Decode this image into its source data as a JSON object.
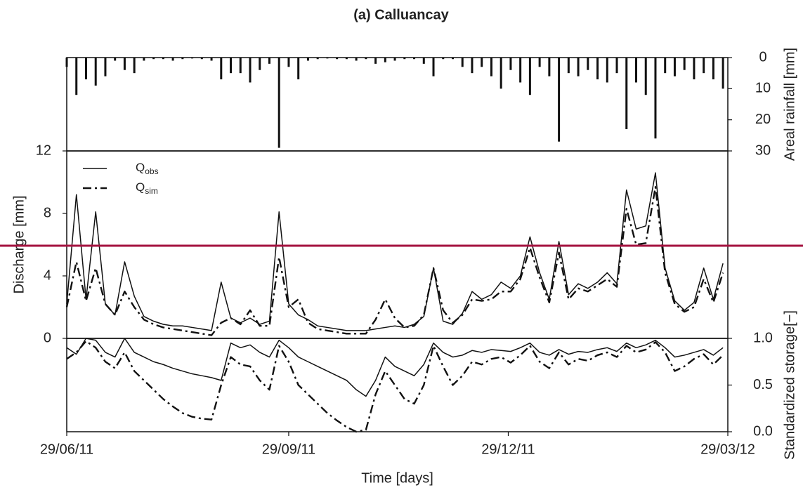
{
  "title": "(a) Calluancay",
  "chart_data": [
    {
      "type": "bar",
      "ylabel": "Areal rainfall [mm]",
      "yaxis_side": "right",
      "inverted": true,
      "color": "#111111",
      "xlim": [
        0,
        274
      ],
      "ylim": [
        0,
        30
      ],
      "yticks": [
        0,
        10,
        20,
        30
      ],
      "x": [
        0,
        4,
        8,
        12,
        16,
        20,
        24,
        28,
        32,
        36,
        40,
        44,
        48,
        52,
        56,
        60,
        64,
        68,
        72,
        76,
        80,
        84,
        88,
        92,
        96,
        100,
        104,
        108,
        112,
        116,
        120,
        124,
        128,
        132,
        136,
        140,
        144,
        148,
        152,
        156,
        160,
        164,
        168,
        172,
        176,
        180,
        184,
        188,
        192,
        196,
        200,
        204,
        208,
        212,
        216,
        220,
        224,
        228,
        232,
        236,
        240,
        244,
        248,
        252,
        256,
        260,
        264,
        268,
        272
      ],
      "values": [
        3,
        12,
        7,
        9,
        6,
        1,
        4,
        5,
        1,
        0.5,
        0.5,
        1,
        0.5,
        0.3,
        0.5,
        1,
        7,
        5,
        5,
        8,
        4,
        2,
        29,
        3,
        7,
        1,
        0.5,
        0.3,
        0.5,
        0.5,
        1,
        0.5,
        2,
        1.5,
        1,
        0.5,
        0.5,
        2,
        6,
        0.5,
        0.5,
        3,
        5,
        3,
        6,
        10,
        4,
        8,
        12,
        3,
        6,
        27,
        5,
        6,
        4,
        7,
        8,
        5,
        23,
        8,
        12,
        26,
        5,
        6,
        4,
        7,
        5,
        7,
        10
      ]
    },
    {
      "type": "line",
      "ylabel": "Discharge [mm]",
      "yaxis_side": "left",
      "legend": "upper left",
      "xlim": [
        0,
        274
      ],
      "ylim": [
        0,
        12
      ],
      "yticks": [
        0,
        4,
        8,
        12
      ],
      "x": [
        0,
        4,
        8,
        12,
        16,
        20,
        24,
        28,
        32,
        36,
        40,
        44,
        48,
        52,
        56,
        60,
        64,
        68,
        72,
        76,
        80,
        84,
        88,
        92,
        96,
        100,
        104,
        108,
        112,
        116,
        120,
        124,
        128,
        132,
        136,
        140,
        144,
        148,
        152,
        156,
        160,
        164,
        168,
        172,
        176,
        180,
        184,
        188,
        192,
        196,
        200,
        204,
        208,
        212,
        216,
        220,
        224,
        228,
        232,
        236,
        240,
        244,
        248,
        252,
        256,
        260,
        264,
        268,
        272
      ],
      "series": [
        {
          "name": "Qobs",
          "color": "#111111",
          "style": "solid",
          "values": [
            2.2,
            9.2,
            2.5,
            8.1,
            2.2,
            1.5,
            4.9,
            2.7,
            1.4,
            1.1,
            0.9,
            0.8,
            0.8,
            0.7,
            0.6,
            0.5,
            3.6,
            1.3,
            1.0,
            1.3,
            0.9,
            1.1,
            8.1,
            2.2,
            1.5,
            1.2,
            0.8,
            0.7,
            0.6,
            0.5,
            0.5,
            0.5,
            0.6,
            0.7,
            0.8,
            0.7,
            0.9,
            1.4,
            4.5,
            1.1,
            0.9,
            1.6,
            3.0,
            2.5,
            2.8,
            3.6,
            3.2,
            4.0,
            6.5,
            4.2,
            2.5,
            6.2,
            2.8,
            3.5,
            3.2,
            3.6,
            4.2,
            3.5,
            9.5,
            7.0,
            7.2,
            10.6,
            4.5,
            2.4,
            1.8,
            2.3,
            4.5,
            2.5,
            4.8
          ]
        },
        {
          "name": "Qsim",
          "color": "#111111",
          "style": "dashdot",
          "values": [
            2.0,
            4.9,
            2.4,
            4.5,
            2.2,
            1.5,
            3.0,
            2.0,
            1.2,
            0.9,
            0.7,
            0.6,
            0.5,
            0.4,
            0.3,
            0.2,
            1.0,
            1.3,
            0.9,
            1.8,
            0.8,
            0.8,
            5.2,
            2.0,
            2.5,
            1.0,
            0.6,
            0.5,
            0.4,
            0.3,
            0.3,
            0.3,
            1.2,
            2.5,
            1.3,
            0.7,
            0.8,
            1.5,
            4.5,
            1.8,
            1.0,
            1.5,
            2.5,
            2.4,
            2.5,
            3.0,
            3.0,
            3.8,
            5.8,
            3.9,
            2.3,
            5.5,
            2.5,
            3.2,
            3.0,
            3.4,
            3.8,
            3.3,
            8.3,
            6.0,
            6.1,
            9.7,
            4.2,
            2.2,
            1.7,
            2.0,
            3.8,
            2.3,
            4.2
          ]
        }
      ]
    },
    {
      "type": "line",
      "ylabel": "Standardized storage[−]",
      "yaxis_side": "right",
      "xlabel": "Time [days]",
      "xlim": [
        0,
        274
      ],
      "ylim": [
        0,
        1
      ],
      "yticks": [
        {
          "value": 0,
          "label": "0.0"
        },
        0.5,
        {
          "value": 1,
          "label": "1.0"
        }
      ],
      "xticks": [
        {
          "value": 0,
          "label": "29/06/11"
        },
        {
          "value": 92,
          "label": "29/09/11"
        },
        {
          "value": 183,
          "label": "29/12/11"
        },
        {
          "value": 274,
          "label": "29/03/12"
        }
      ],
      "x": [
        0,
        4,
        8,
        12,
        16,
        20,
        24,
        28,
        32,
        36,
        40,
        44,
        48,
        52,
        56,
        60,
        64,
        68,
        72,
        76,
        80,
        84,
        88,
        92,
        96,
        100,
        104,
        108,
        112,
        116,
        120,
        124,
        128,
        132,
        136,
        140,
        144,
        148,
        152,
        156,
        160,
        164,
        168,
        172,
        176,
        180,
        184,
        188,
        192,
        196,
        200,
        204,
        208,
        212,
        216,
        220,
        224,
        228,
        232,
        236,
        240,
        244,
        248,
        252,
        256,
        260,
        264,
        268,
        272
      ],
      "series": [
        {
          "color": "#111111",
          "style": "solid",
          "values": [
            0.9,
            0.83,
            1.0,
            0.98,
            0.85,
            0.8,
            1.0,
            0.85,
            0.8,
            0.75,
            0.72,
            0.68,
            0.65,
            0.62,
            0.6,
            0.58,
            0.55,
            0.95,
            0.9,
            0.93,
            0.85,
            0.8,
            0.98,
            0.9,
            0.8,
            0.75,
            0.7,
            0.65,
            0.6,
            0.55,
            0.45,
            0.38,
            0.55,
            0.8,
            0.7,
            0.65,
            0.6,
            0.72,
            0.95,
            0.85,
            0.8,
            0.82,
            0.87,
            0.85,
            0.88,
            0.87,
            0.86,
            0.9,
            0.95,
            0.85,
            0.82,
            0.88,
            0.83,
            0.86,
            0.85,
            0.88,
            0.9,
            0.86,
            0.95,
            0.9,
            0.93,
            0.98,
            0.9,
            0.8,
            0.82,
            0.85,
            0.88,
            0.82,
            0.9
          ]
        },
        {
          "color": "#111111",
          "style": "dashdot",
          "values": [
            0.78,
            0.85,
            0.97,
            0.9,
            0.75,
            0.68,
            0.85,
            0.65,
            0.55,
            0.45,
            0.35,
            0.27,
            0.2,
            0.16,
            0.14,
            0.13,
            0.5,
            0.8,
            0.72,
            0.7,
            0.55,
            0.45,
            0.92,
            0.75,
            0.5,
            0.4,
            0.3,
            0.2,
            0.12,
            0.05,
            0.0,
            0.02,
            0.4,
            0.65,
            0.5,
            0.35,
            0.3,
            0.5,
            0.92,
            0.7,
            0.5,
            0.6,
            0.75,
            0.72,
            0.78,
            0.8,
            0.74,
            0.82,
            0.92,
            0.75,
            0.68,
            0.85,
            0.72,
            0.78,
            0.76,
            0.82,
            0.85,
            0.8,
            0.92,
            0.85,
            0.88,
            0.96,
            0.85,
            0.65,
            0.7,
            0.78,
            0.83,
            0.72,
            0.82
          ]
        }
      ]
    }
  ]
}
